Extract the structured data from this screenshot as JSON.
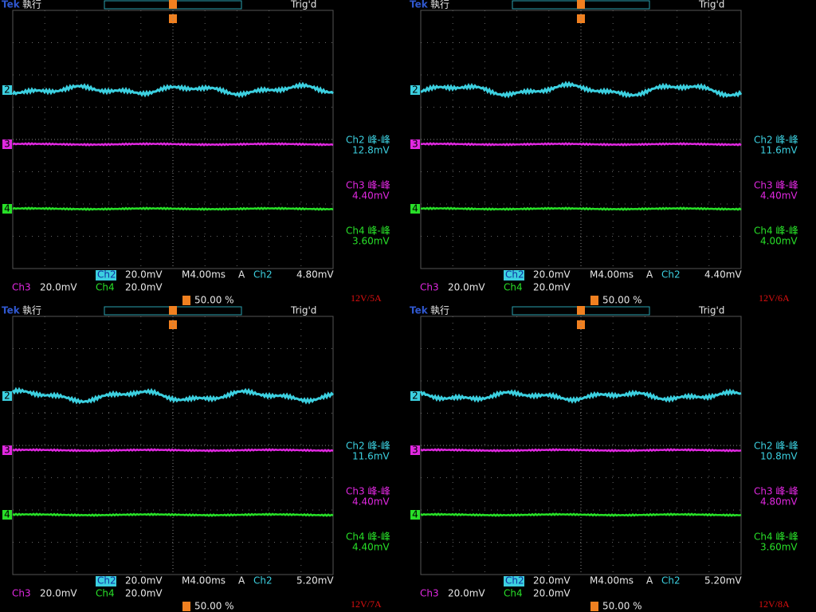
{
  "panels": [
    {
      "brand": "Tek",
      "status": "執行",
      "trigger": "Trig'd",
      "markers": [
        "2",
        "3",
        "4"
      ],
      "measurements": [
        {
          "label": "Ch2 峰-峰",
          "value": "12.8mV"
        },
        {
          "label": "Ch3 峰-峰",
          "value": "4.40mV"
        },
        {
          "label": "Ch4 峰-峰",
          "value": "3.60mV"
        }
      ],
      "bottom": {
        "ch2": "Ch2",
        "ch2_scale": "20.0mV",
        "timebase": "M4.00ms",
        "trigger_mode": "A",
        "trigger_source": "Ch2",
        "trigger_level": "4.80mV",
        "ch3": "Ch3",
        "ch3_scale": "20.0mV",
        "ch4": "Ch4",
        "ch4_scale": "20.0mV",
        "trigger_position": "50.00 %"
      },
      "caption": "12V/5A"
    },
    {
      "brand": "Tek",
      "status": "執行",
      "trigger": "Trig'd",
      "markers": [
        "2",
        "3",
        "4"
      ],
      "measurements": [
        {
          "label": "Ch2 峰-峰",
          "value": "11.6mV"
        },
        {
          "label": "Ch3 峰-峰",
          "value": "4.40mV"
        },
        {
          "label": "Ch4 峰-峰",
          "value": "4.00mV"
        }
      ],
      "bottom": {
        "ch2": "Ch2",
        "ch2_scale": "20.0mV",
        "timebase": "M4.00ms",
        "trigger_mode": "A",
        "trigger_source": "Ch2",
        "trigger_level": "4.40mV",
        "ch3": "Ch3",
        "ch3_scale": "20.0mV",
        "ch4": "Ch4",
        "ch4_scale": "20.0mV",
        "trigger_position": "50.00 %"
      },
      "caption": "12V/6A"
    },
    {
      "brand": "Tek",
      "status": "執行",
      "trigger": "Trig'd",
      "markers": [
        "2",
        "3",
        "4"
      ],
      "measurements": [
        {
          "label": "Ch2 峰-峰",
          "value": "11.6mV"
        },
        {
          "label": "Ch3 峰-峰",
          "value": "4.40mV"
        },
        {
          "label": "Ch4 峰-峰",
          "value": "4.40mV"
        }
      ],
      "bottom": {
        "ch2": "Ch2",
        "ch2_scale": "20.0mV",
        "timebase": "M4.00ms",
        "trigger_mode": "A",
        "trigger_source": "Ch2",
        "trigger_level": "5.20mV",
        "ch3": "Ch3",
        "ch3_scale": "20.0mV",
        "ch4": "Ch4",
        "ch4_scale": "20.0mV",
        "trigger_position": "50.00 %"
      },
      "caption": "12V/7A"
    },
    {
      "brand": "Tek",
      "status": "執行",
      "trigger": "Trig'd",
      "markers": [
        "2",
        "3",
        "4"
      ],
      "measurements": [
        {
          "label": "Ch2 峰-峰",
          "value": "10.8mV"
        },
        {
          "label": "Ch3 峰-峰",
          "value": "4.80mV"
        },
        {
          "label": "Ch4 峰-峰",
          "value": "3.60mV"
        }
      ],
      "bottom": {
        "ch2": "Ch2",
        "ch2_scale": "20.0mV",
        "timebase": "M4.00ms",
        "trigger_mode": "A",
        "trigger_source": "Ch2",
        "trigger_level": "5.20mV",
        "ch3": "Ch3",
        "ch3_scale": "20.0mV",
        "ch4": "Ch4",
        "ch4_scale": "20.0mV",
        "trigger_position": "50.00 %"
      },
      "caption": "12V/8A"
    }
  ]
}
